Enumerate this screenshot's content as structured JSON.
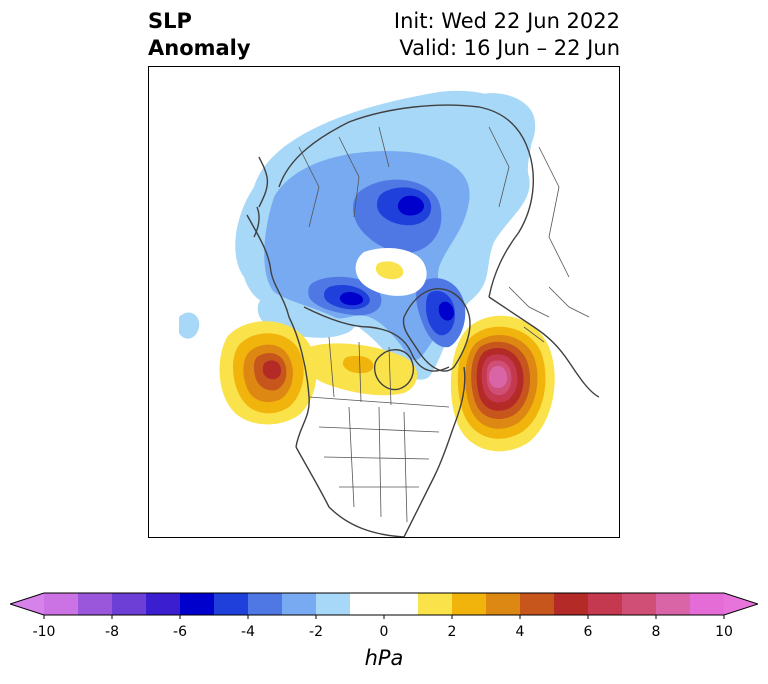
{
  "title": {
    "line1": "SLP",
    "line2": "Anomaly",
    "init": "Init: Wed 22 Jun 2022",
    "valid": "Valid: 16 Jun – 22 Jun"
  },
  "colorbar": {
    "unit": "hPa",
    "min": -11,
    "max": 11,
    "ticks": [
      -10,
      -8,
      -6,
      -4,
      -2,
      0,
      2,
      4,
      6,
      8,
      10
    ],
    "tick_labels": [
      "-10",
      "-8",
      "-6",
      "-4",
      "-2",
      "0",
      "2",
      "4",
      "6",
      "8",
      "10"
    ],
    "levels": [
      -10,
      -9,
      -8,
      -7,
      -6,
      -5,
      -4,
      -3,
      -2,
      -1,
      1,
      2,
      3,
      4,
      5,
      6,
      7,
      8,
      9,
      10
    ],
    "colors": [
      "#cb72e4",
      "#9b57dc",
      "#6d3fd6",
      "#3b1ed0",
      "#0000cc",
      "#2040dc",
      "#4f78e4",
      "#77aaf0",
      "#a8d8f8",
      "#ffffff",
      "#fae24a",
      "#f1b40c",
      "#dd8812",
      "#c7561c",
      "#b32a26",
      "#c4394f",
      "#cf4f77",
      "#d964a6",
      "#e56cd6"
    ],
    "extend_low": "#d582ea",
    "extend_high": "#e774da"
  },
  "map": {
    "projection": "north-polar-stereographic",
    "features": [
      "coastlines",
      "country-borders",
      "us-states",
      "canadian-provinces"
    ],
    "anomalies": [
      {
        "name": "north-pacific-high",
        "type": "positive",
        "peak_hpa": 6
      },
      {
        "name": "north-atlantic-high",
        "type": "positive",
        "peak_hpa": 9
      },
      {
        "name": "central-canada-high",
        "type": "positive",
        "peak_hpa": 2
      },
      {
        "name": "siberian-low",
        "type": "negative",
        "peak_hpa": -6
      },
      {
        "name": "alaska-beaufort-low",
        "type": "negative",
        "peak_hpa": -6
      },
      {
        "name": "greenland-low",
        "type": "negative",
        "peak_hpa": -6
      },
      {
        "name": "arctic-high",
        "type": "positive",
        "peak_hpa": 2
      }
    ]
  }
}
